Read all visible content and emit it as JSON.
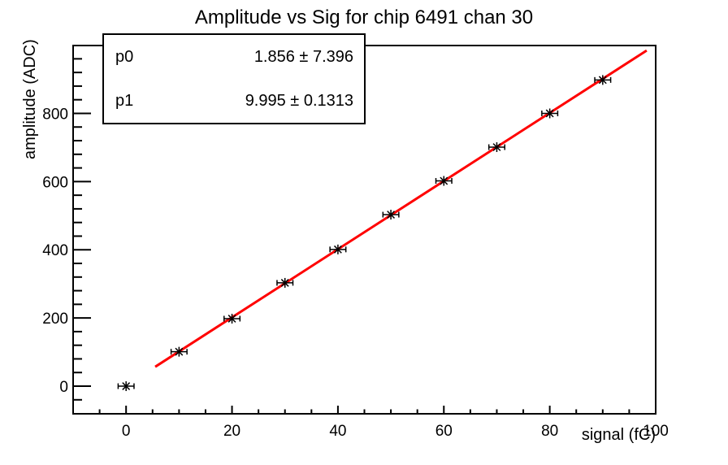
{
  "window": {
    "background": "#ffffff",
    "frame_color": "#000000"
  },
  "chart_data": {
    "type": "scatter",
    "title": "Amplitude vs Sig for chip 6491 chan 30",
    "xlabel": "signal (fC)",
    "ylabel": "amplitude (ADC)",
    "xlim": [
      -10,
      100
    ],
    "ylim": [
      -81,
      999
    ],
    "x_major_ticks": [
      0,
      20,
      40,
      60,
      80,
      100
    ],
    "x_minor_step": 5,
    "y_major_ticks": [
      0,
      200,
      400,
      600,
      800
    ],
    "y_minor_step": 40,
    "grid": false,
    "legend": "none",
    "series": [
      {
        "name": "calibration-points",
        "marker": "asterisk",
        "color": "#000000",
        "x": [
          0,
          10,
          20,
          30,
          40,
          50,
          60,
          70,
          80,
          90
        ],
        "y": [
          0,
          101,
          198,
          303,
          401,
          503,
          602,
          701,
          800,
          898
        ],
        "xerr": 1.5
      }
    ],
    "fit": {
      "type": "linear",
      "p0": 1.856,
      "p1": 9.995,
      "x_range": [
        5.5,
        98.3
      ],
      "color": "#ff0000",
      "line_width": 3
    },
    "stats_box": {
      "rows": [
        {
          "name": "p0",
          "value": "1.856 ± 7.396"
        },
        {
          "name": "p1",
          "value": "9.995 ± 0.1313"
        }
      ]
    }
  }
}
